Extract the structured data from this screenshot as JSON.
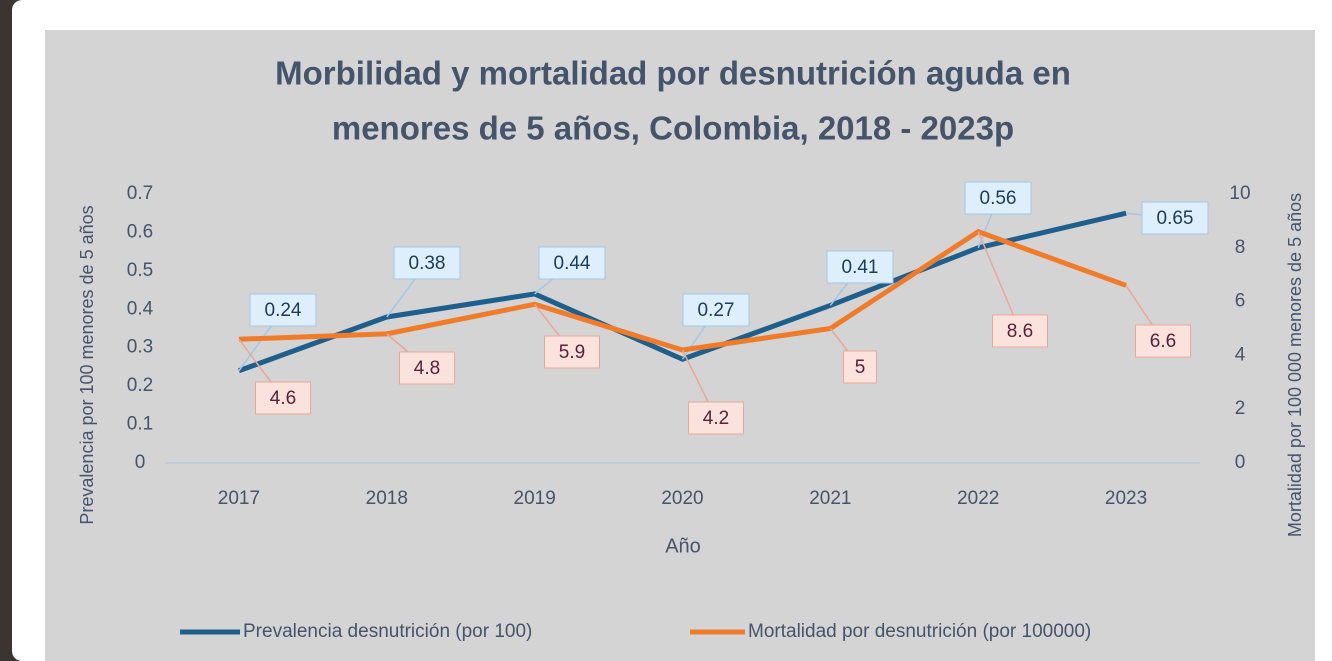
{
  "chart_data": {
    "type": "line",
    "title": [
      "Morbilidad y mortalidad por desnutrición aguda en",
      "menores de 5 años, Colombia, 2018 - 2023p"
    ],
    "x_label": "Año",
    "y_label": "Prevalencia por 100 menores de 5 años",
    "y2_label": "Mortalidad  por 100 000 menores de 5 años",
    "categories": [
      "2017",
      "2018",
      "2019",
      "2020",
      "2021",
      "2022",
      "2023"
    ],
    "series": [
      {
        "name": "Prevalencia desnutrición (por 100)",
        "color": "#1f5f8b",
        "values": [
          0.24,
          0.38,
          0.44,
          0.27,
          0.41,
          0.56,
          0.65
        ]
      },
      {
        "name": "Mortalidad por desnutrición (por 100000)",
        "color": "#f07c2a",
        "axis": "y2",
        "values": [
          4.6,
          4.8,
          5.9,
          4.2,
          5,
          8.6,
          6.6
        ]
      }
    ],
    "ylim": [
      0,
      0.7
    ],
    "yticks": [
      0,
      0.1,
      0.2,
      0.3,
      0.4,
      0.5,
      0.6,
      0.7
    ],
    "y2lim": [
      0,
      10
    ],
    "y2ticks": [
      0,
      2,
      4,
      6,
      8,
      10
    ],
    "legend": "bottom"
  }
}
